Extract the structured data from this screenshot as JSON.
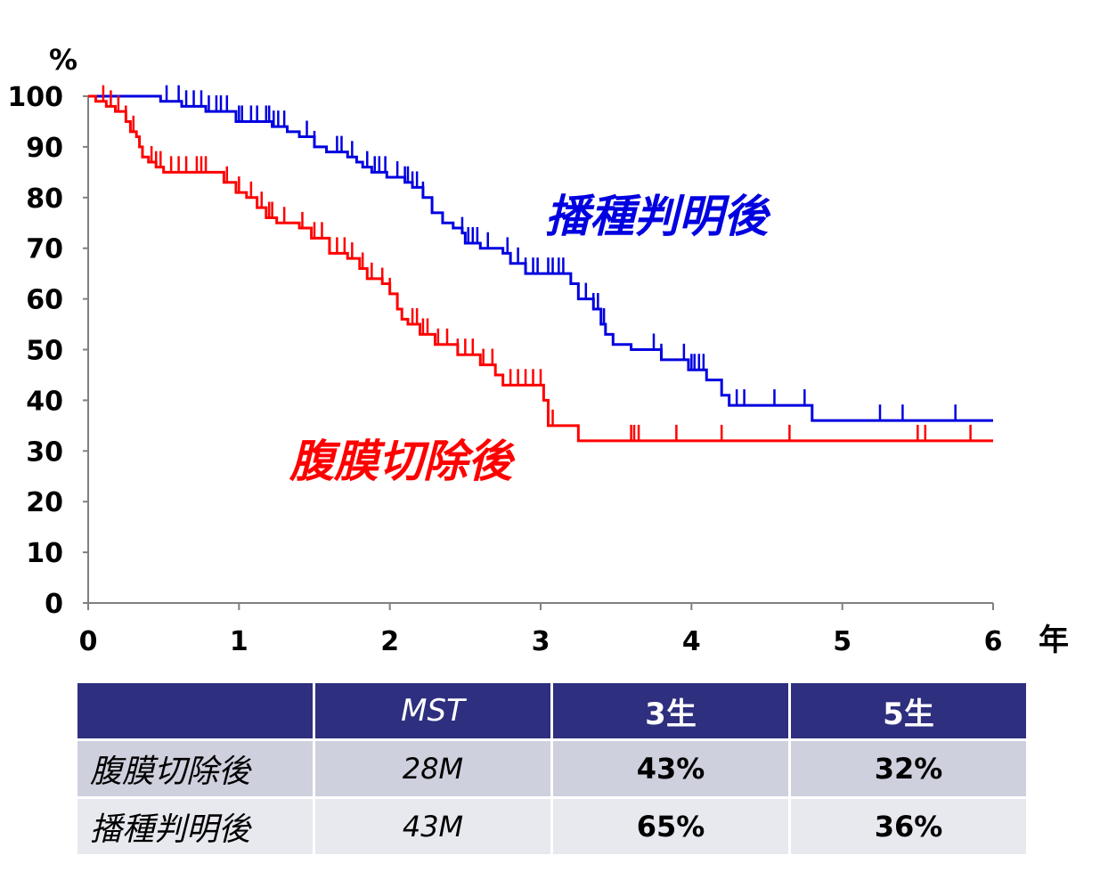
{
  "chart_data": {
    "type": "line",
    "subtype": "kaplan-meier step curve",
    "ylabel": "%",
    "xlabel": "年",
    "xlim": [
      0,
      6
    ],
    "ylim": [
      0,
      100
    ],
    "x_ticks": [
      "0",
      "1",
      "2",
      "3",
      "4",
      "5",
      "6"
    ],
    "y_ticks": [
      "0",
      "10",
      "20",
      "30",
      "40",
      "50",
      "60",
      "70",
      "80",
      "90",
      "100"
    ],
    "series": [
      {
        "name": "播種判明後",
        "color": "#0000e0",
        "steps": [
          [
            0,
            100
          ],
          [
            0.48,
            99
          ],
          [
            0.62,
            98
          ],
          [
            0.78,
            97
          ],
          [
            0.98,
            95
          ],
          [
            1.22,
            94
          ],
          [
            1.32,
            93
          ],
          [
            1.4,
            92
          ],
          [
            1.5,
            90
          ],
          [
            1.58,
            89
          ],
          [
            1.72,
            88
          ],
          [
            1.78,
            87
          ],
          [
            1.82,
            86
          ],
          [
            1.88,
            85
          ],
          [
            1.98,
            84
          ],
          [
            2.1,
            83
          ],
          [
            2.15,
            82
          ],
          [
            2.22,
            80
          ],
          [
            2.28,
            77
          ],
          [
            2.35,
            75
          ],
          [
            2.42,
            74
          ],
          [
            2.48,
            73
          ],
          [
            2.5,
            71
          ],
          [
            2.6,
            70
          ],
          [
            2.75,
            69
          ],
          [
            2.8,
            67
          ],
          [
            2.9,
            65
          ],
          [
            3.2,
            63
          ],
          [
            3.25,
            60
          ],
          [
            3.35,
            58
          ],
          [
            3.4,
            55
          ],
          [
            3.43,
            53
          ],
          [
            3.48,
            51
          ],
          [
            3.6,
            50
          ],
          [
            3.8,
            48
          ],
          [
            3.98,
            46
          ],
          [
            4.1,
            44
          ],
          [
            4.2,
            41
          ],
          [
            4.25,
            39
          ],
          [
            4.8,
            36
          ],
          [
            6.0,
            36
          ]
        ],
        "censored_x": [
          0.52,
          0.6,
          0.65,
          0.7,
          0.75,
          0.8,
          0.85,
          0.88,
          0.92,
          1.0,
          1.02,
          1.08,
          1.12,
          1.18,
          1.2,
          1.23,
          1.26,
          1.3,
          1.45,
          1.5,
          1.65,
          1.68,
          1.75,
          1.85,
          1.9,
          1.93,
          1.97,
          2.05,
          2.1,
          2.12,
          2.15,
          2.18,
          2.22,
          2.48,
          2.52,
          2.55,
          2.58,
          2.65,
          2.78,
          2.85,
          2.9,
          2.95,
          2.98,
          3.05,
          3.08,
          3.12,
          3.15,
          3.3,
          3.35,
          3.38,
          3.42,
          3.75,
          3.8,
          3.95,
          4.0,
          4.02,
          4.05,
          4.08,
          4.3,
          4.35,
          4.55,
          4.75,
          5.25,
          5.4,
          5.75
        ]
      },
      {
        "name": "腹膜切除後",
        "color": "#ff0000",
        "steps": [
          [
            0,
            100
          ],
          [
            0.05,
            99
          ],
          [
            0.12,
            98
          ],
          [
            0.18,
            97
          ],
          [
            0.25,
            95
          ],
          [
            0.28,
            93
          ],
          [
            0.32,
            92
          ],
          [
            0.34,
            90
          ],
          [
            0.36,
            88
          ],
          [
            0.4,
            87
          ],
          [
            0.45,
            86
          ],
          [
            0.5,
            85
          ],
          [
            0.9,
            83
          ],
          [
            0.98,
            81
          ],
          [
            1.05,
            80
          ],
          [
            1.12,
            78
          ],
          [
            1.18,
            76
          ],
          [
            1.25,
            75
          ],
          [
            1.4,
            74
          ],
          [
            1.48,
            72
          ],
          [
            1.6,
            69
          ],
          [
            1.72,
            68
          ],
          [
            1.8,
            66
          ],
          [
            1.85,
            64
          ],
          [
            1.95,
            63
          ],
          [
            2.0,
            61
          ],
          [
            2.05,
            58
          ],
          [
            2.08,
            56
          ],
          [
            2.12,
            55
          ],
          [
            2.2,
            53
          ],
          [
            2.3,
            51
          ],
          [
            2.45,
            49
          ],
          [
            2.6,
            47
          ],
          [
            2.7,
            45
          ],
          [
            2.75,
            43
          ],
          [
            3.02,
            40
          ],
          [
            3.05,
            35
          ],
          [
            3.25,
            32
          ],
          [
            6.0,
            32
          ]
        ],
        "censored_x": [
          0.1,
          0.15,
          0.2,
          0.25,
          0.3,
          0.42,
          0.45,
          0.48,
          0.55,
          0.6,
          0.65,
          0.72,
          0.75,
          0.78,
          0.92,
          1.0,
          1.08,
          1.15,
          1.2,
          1.22,
          1.3,
          1.42,
          1.5,
          1.55,
          1.6,
          1.65,
          1.7,
          1.75,
          1.82,
          1.88,
          1.95,
          2.0,
          2.15,
          2.18,
          2.22,
          2.25,
          2.32,
          2.38,
          2.45,
          2.5,
          2.55,
          2.62,
          2.68,
          2.8,
          2.85,
          2.9,
          2.95,
          3.0,
          3.08,
          3.6,
          3.62,
          3.65,
          3.9,
          4.2,
          4.65,
          5.5,
          5.55,
          5.85
        ]
      }
    ],
    "annotations": [
      {
        "text": "播種判明後",
        "color": "#0000e0"
      },
      {
        "text": "腹膜切除後",
        "color": "#ff0000"
      }
    ]
  },
  "table": {
    "headers": [
      "",
      "MST",
      "3生",
      "5生"
    ],
    "rows": [
      {
        "label": "腹膜切除後",
        "mst": "28M",
        "y3": "43%",
        "y5": "32%"
      },
      {
        "label": "播種判明後",
        "mst": "43M",
        "y3": "65%",
        "y5": "36%"
      }
    ]
  }
}
